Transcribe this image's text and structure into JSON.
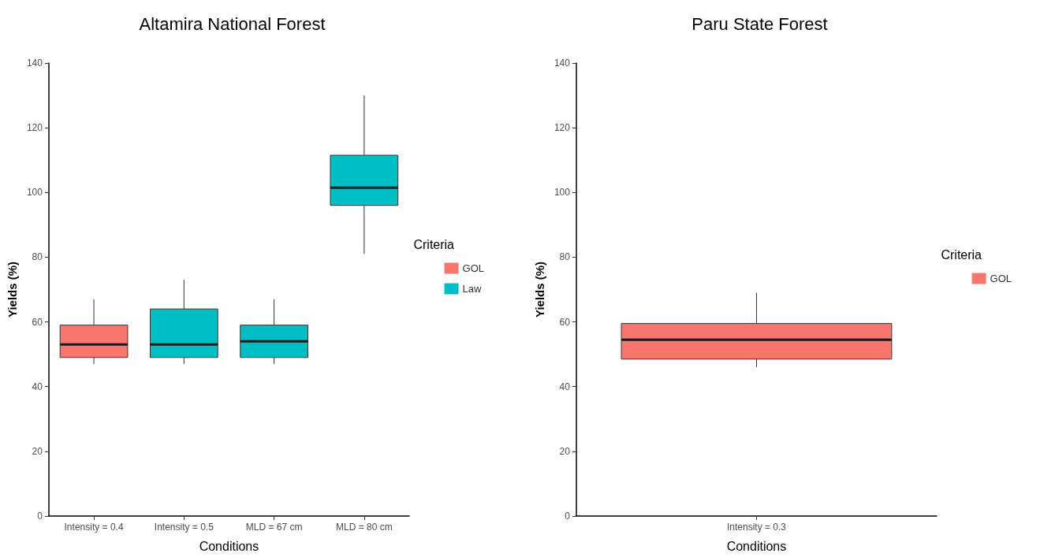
{
  "chart_data": [
    {
      "type": "box",
      "title": "Altamira National Forest",
      "xlabel": "Conditions",
      "ylabel": "Yields (%)",
      "legend_title": "Criteria",
      "legend": "right",
      "grid": false,
      "categories": [
        "Intensity = 0.4",
        "Intensity = 0.5",
        "MLD = 67 cm",
        "MLD = 80 cm"
      ],
      "ylim": [
        0,
        140
      ],
      "yticks": [
        0,
        20,
        40,
        60,
        80,
        100,
        120,
        140
      ],
      "series": [
        {
          "name": "GOL",
          "color": "#f8766d",
          "boxes": [
            {
              "low": 47,
              "q1": 49,
              "median": 53,
              "q3": 59,
              "high": 67
            },
            null,
            null,
            null
          ]
        },
        {
          "name": "Law",
          "color": "#00bfc4",
          "boxes": [
            null,
            {
              "low": 47,
              "q1": 49,
              "median": 53,
              "q3": 64,
              "high": 73
            },
            {
              "low": 47,
              "q1": 49,
              "median": 54,
              "q3": 59,
              "high": 67
            },
            {
              "low": 81,
              "q1": 96,
              "median": 101.5,
              "q3": 111.5,
              "high": 130
            }
          ]
        }
      ]
    },
    {
      "type": "box",
      "title": "Paru State Forest",
      "xlabel": "Conditions",
      "ylabel": "Yields (%)",
      "legend_title": "Criteria",
      "legend": "right",
      "grid": false,
      "categories": [
        "Intensity = 0.3"
      ],
      "ylim": [
        0,
        140
      ],
      "yticks": [
        0,
        20,
        40,
        60,
        80,
        100,
        120,
        140
      ],
      "series": [
        {
          "name": "GOL",
          "color": "#f8766d",
          "boxes": [
            {
              "low": 46,
              "q1": 48.5,
              "median": 54.5,
              "q3": 59.5,
              "high": 69
            }
          ]
        }
      ]
    }
  ]
}
